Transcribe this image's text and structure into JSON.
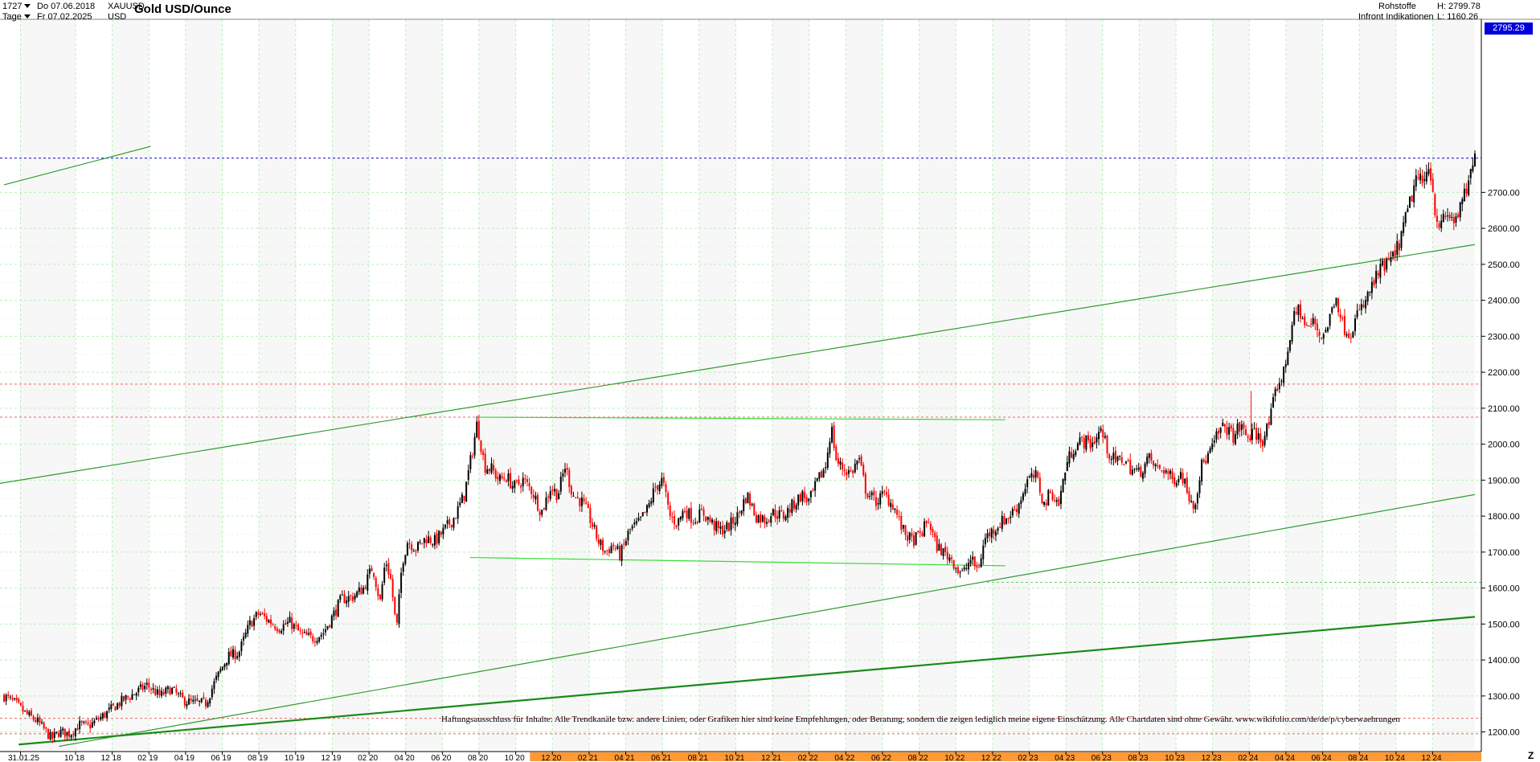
{
  "header": {
    "bar_count": "1727",
    "interval": "Tage",
    "from_date": "Do 07.06.2018",
    "to_date": "Fr 07.02.2025",
    "symbol": "XAUUSD",
    "currency": "USD",
    "title": "Gold USD/Ounce",
    "category": "Rohstoffe",
    "source": "Infront Indikationen",
    "high_label": "H: 2799.78",
    "low_label": "L: 1160.26",
    "last_price": "2795.29"
  },
  "disclaimer": "Haftungsausschluss für Inhalte: Alle Trendkanäle bzw. andere Linien, oder Grafiken hier sind keine Empfehlungen, oder Beratung, sondern die zeigen lediglich meine eigene Einschätzung. Alle Chartdaten sind ohne Gewähr. www.wikifolio.com/de/de/p/cyberwaehrungen",
  "z_button": "Z",
  "colors": {
    "candle_up": "#000000",
    "candle_down": "#ff0000",
    "trendline": "#2e9b2e",
    "trendline_light": "#33dd33",
    "last_price_line": "#0000dd",
    "resistance_line": "#ee6666",
    "grid": "#b8f0b8",
    "timeline_highlight": "#ff9933"
  },
  "chart_data": {
    "type": "candlestick",
    "ylim": [
      1160,
      2830
    ],
    "y_ticks": [
      1200,
      1300,
      1400,
      1500,
      1600,
      1700,
      1800,
      1900,
      2000,
      2100,
      2200,
      2300,
      2400,
      2500,
      2600,
      2700
    ],
    "x_tick_labels": [
      "31.01.25",
      "10 18",
      "12 18",
      "02 19",
      "04 19",
      "06 19",
      "08 19",
      "10 19",
      "12 19",
      "02 20",
      "04 20",
      "06 20",
      "08 20",
      "10 20",
      "12 20",
      "02 21",
      "04 21",
      "06 21",
      "08 21",
      "10 21",
      "12 21",
      "02 22",
      "04 22",
      "06 22",
      "08 22",
      "10 22",
      "12 22",
      "02 23",
      "04 23",
      "06 23",
      "08 23",
      "10 23",
      "12 23",
      "02 24",
      "04 24",
      "06 24",
      "08 24",
      "10 24",
      "12 24"
    ],
    "x_tick_times": [
      0.9,
      3.9,
      5.9,
      7.9,
      9.9,
      11.9,
      13.9,
      15.9,
      17.9,
      19.9,
      21.9,
      23.9,
      25.9,
      27.9,
      29.9,
      31.9,
      33.9,
      35.9,
      37.9,
      39.9,
      41.9,
      43.9,
      45.9,
      47.9,
      49.9,
      51.9,
      53.9,
      55.9,
      57.9,
      59.9,
      61.9,
      63.9,
      65.9,
      67.9,
      69.9,
      71.9,
      73.9,
      75.9,
      77.9
    ],
    "highlighted_ticks_from": "12 20",
    "x_range_months": [
      0,
      80.2
    ],
    "price_path": [
      [
        0,
        1300
      ],
      [
        0.6,
        1280
      ],
      [
        1.2,
        1250
      ],
      [
        1.8,
        1230
      ],
      [
        2.3,
        1200
      ],
      [
        2.6,
        1180
      ],
      [
        3.0,
        1200
      ],
      [
        3.6,
        1195
      ],
      [
        4.1,
        1220
      ],
      [
        4.6,
        1215
      ],
      [
        5.4,
        1245
      ],
      [
        6.4,
        1285
      ],
      [
        7.2,
        1310
      ],
      [
        7.8,
        1330
      ],
      [
        8.5,
        1300
      ],
      [
        9.1,
        1320
      ],
      [
        9.7,
        1290
      ],
      [
        10.3,
        1280
      ],
      [
        11.0,
        1280
      ],
      [
        11.5,
        1340
      ],
      [
        12.2,
        1410
      ],
      [
        12.8,
        1420
      ],
      [
        13.4,
        1500
      ],
      [
        13.9,
        1530
      ],
      [
        14.4,
        1510
      ],
      [
        15.0,
        1490
      ],
      [
        15.6,
        1505
      ],
      [
        16.2,
        1470
      ],
      [
        16.8,
        1460
      ],
      [
        17.4,
        1475
      ],
      [
        17.9,
        1520
      ],
      [
        18.4,
        1570
      ],
      [
        19.0,
        1575
      ],
      [
        19.6,
        1600
      ],
      [
        20.1,
        1660
      ],
      [
        20.5,
        1560
      ],
      [
        20.8,
        1680
      ],
      [
        21.1,
        1620
      ],
      [
        21.4,
        1480
      ],
      [
        21.7,
        1670
      ],
      [
        22.0,
        1730
      ],
      [
        22.5,
        1710
      ],
      [
        23.0,
        1740
      ],
      [
        23.5,
        1730
      ],
      [
        24.0,
        1760
      ],
      [
        24.6,
        1800
      ],
      [
        25.1,
        1860
      ],
      [
        25.5,
        1970
      ],
      [
        25.8,
        2060
      ],
      [
        26.2,
        1940
      ],
      [
        26.6,
        1930
      ],
      [
        27.0,
        1900
      ],
      [
        27.4,
        1910
      ],
      [
        27.8,
        1880
      ],
      [
        28.3,
        1900
      ],
      [
        28.8,
        1870
      ],
      [
        29.3,
        1810
      ],
      [
        29.8,
        1880
      ],
      [
        30.2,
        1860
      ],
      [
        30.6,
        1940
      ],
      [
        31.0,
        1860
      ],
      [
        31.5,
        1840
      ],
      [
        31.9,
        1800
      ],
      [
        32.4,
        1730
      ],
      [
        32.8,
        1700
      ],
      [
        33.2,
        1720
      ],
      [
        33.6,
        1690
      ],
      [
        34.1,
        1760
      ],
      [
        34.6,
        1780
      ],
      [
        35.1,
        1820
      ],
      [
        35.5,
        1880
      ],
      [
        35.9,
        1900
      ],
      [
        36.3,
        1800
      ],
      [
        36.7,
        1780
      ],
      [
        37.1,
        1820
      ],
      [
        37.6,
        1790
      ],
      [
        38.1,
        1810
      ],
      [
        38.6,
        1780
      ],
      [
        39.0,
        1760
      ],
      [
        39.5,
        1770
      ],
      [
        40.0,
        1800
      ],
      [
        40.5,
        1860
      ],
      [
        41.0,
        1800
      ],
      [
        41.5,
        1790
      ],
      [
        41.9,
        1810
      ],
      [
        42.5,
        1800
      ],
      [
        43.0,
        1830
      ],
      [
        43.5,
        1860
      ],
      [
        43.9,
        1840
      ],
      [
        44.4,
        1900
      ],
      [
        44.8,
        1940
      ],
      [
        45.1,
        2050
      ],
      [
        45.4,
        1950
      ],
      [
        45.8,
        1930
      ],
      [
        46.2,
        1920
      ],
      [
        46.6,
        1960
      ],
      [
        47.0,
        1870
      ],
      [
        47.5,
        1840
      ],
      [
        48.0,
        1860
      ],
      [
        48.5,
        1830
      ],
      [
        49.0,
        1760
      ],
      [
        49.5,
        1730
      ],
      [
        50.0,
        1750
      ],
      [
        50.4,
        1790
      ],
      [
        50.8,
        1720
      ],
      [
        51.2,
        1700
      ],
      [
        51.7,
        1680
      ],
      [
        52.0,
        1650
      ],
      [
        52.3,
        1640
      ],
      [
        52.7,
        1680
      ],
      [
        53.1,
        1650
      ],
      [
        53.5,
        1740
      ],
      [
        53.9,
        1760
      ],
      [
        54.3,
        1780
      ],
      [
        54.8,
        1800
      ],
      [
        55.3,
        1830
      ],
      [
        55.8,
        1900
      ],
      [
        56.3,
        1910
      ],
      [
        56.7,
        1830
      ],
      [
        57.1,
        1870
      ],
      [
        57.5,
        1830
      ],
      [
        57.9,
        1940
      ],
      [
        58.3,
        1990
      ],
      [
        58.8,
        2010
      ],
      [
        59.3,
        2000
      ],
      [
        59.8,
        2040
      ],
      [
        60.2,
        1980
      ],
      [
        60.6,
        1950
      ],
      [
        61.0,
        1960
      ],
      [
        61.5,
        1930
      ],
      [
        61.9,
        1920
      ],
      [
        62.4,
        1960
      ],
      [
        62.9,
        1930
      ],
      [
        63.3,
        1930
      ],
      [
        63.7,
        1900
      ],
      [
        64.2,
        1920
      ],
      [
        64.6,
        1860
      ],
      [
        64.9,
        1830
      ],
      [
        65.3,
        1940
      ],
      [
        65.8,
        1980
      ],
      [
        66.2,
        2030
      ],
      [
        66.6,
        2050
      ],
      [
        67.0,
        2020
      ],
      [
        67.4,
        2050
      ],
      [
        67.8,
        2020
      ],
      [
        68.2,
        2030
      ],
      [
        68.6,
        2010
      ],
      [
        69.0,
        2060
      ],
      [
        69.4,
        2160
      ],
      [
        69.8,
        2200
      ],
      [
        70.2,
        2330
      ],
      [
        70.6,
        2380
      ],
      [
        71.0,
        2320
      ],
      [
        71.4,
        2340
      ],
      [
        71.8,
        2300
      ],
      [
        72.2,
        2330
      ],
      [
        72.6,
        2420
      ],
      [
        73.0,
        2330
      ],
      [
        73.4,
        2310
      ],
      [
        73.8,
        2360
      ],
      [
        74.2,
        2390
      ],
      [
        74.6,
        2440
      ],
      [
        75.0,
        2480
      ],
      [
        75.4,
        2500
      ],
      [
        75.8,
        2520
      ],
      [
        76.2,
        2580
      ],
      [
        76.6,
        2660
      ],
      [
        77.0,
        2740
      ],
      [
        77.4,
        2720
      ],
      [
        77.7,
        2790
      ],
      [
        78.0,
        2660
      ],
      [
        78.3,
        2600
      ],
      [
        78.7,
        2640
      ],
      [
        79.0,
        2620
      ],
      [
        79.4,
        2650
      ],
      [
        79.7,
        2700
      ],
      [
        80.0,
        2750
      ],
      [
        80.2,
        2795
      ]
    ],
    "trend_lines": [
      {
        "kind": "upper-channel",
        "from": [
          -6.4,
          1840
        ],
        "to": [
          80.2,
          2555
        ]
      },
      {
        "kind": "upper-channel-offset",
        "from": [
          0,
          2721
        ],
        "to": [
          8.0,
          2828
        ]
      },
      {
        "kind": "lower-channel",
        "from": [
          3.0,
          1160
        ],
        "to": [
          80.2,
          1860
        ]
      },
      {
        "kind": "long-term-support",
        "from": [
          0.8,
          1165
        ],
        "to": [
          80.2,
          1520
        ]
      },
      {
        "kind": "range-top",
        "from": [
          25.9,
          2075
        ],
        "to": [
          54.6,
          2068
        ]
      },
      {
        "kind": "range-bottom",
        "from": [
          25.4,
          1685
        ],
        "to": [
          54.6,
          1662
        ]
      }
    ],
    "horizontal_levels": [
      {
        "kind": "last-price",
        "value": 2795.29
      },
      {
        "kind": "resistance",
        "value": 2167
      },
      {
        "kind": "resistance",
        "value": 2075
      },
      {
        "kind": "support",
        "value": 1616
      },
      {
        "kind": "support",
        "value": 1238
      },
      {
        "kind": "support",
        "value": 1195
      }
    ],
    "spike": {
      "t": 68.0,
      "high": 2148,
      "low": 2010
    }
  }
}
